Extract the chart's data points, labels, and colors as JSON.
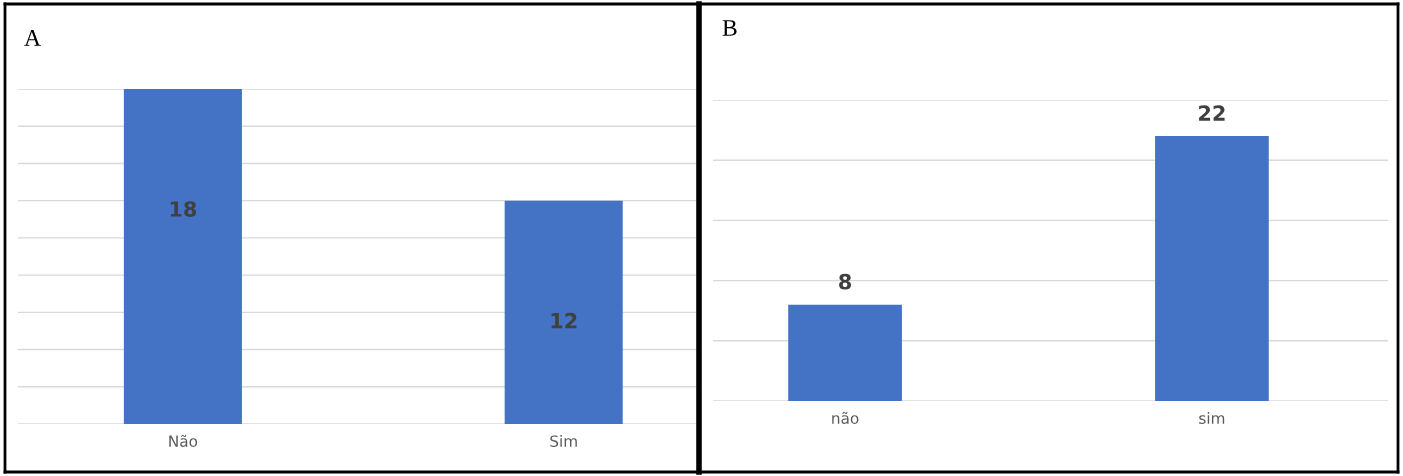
{
  "chart_data": [
    {
      "type": "bar",
      "title": "A",
      "categories": [
        "Não",
        "Sim"
      ],
      "values": [
        18,
        12
      ],
      "color": "#4472c4",
      "ylim": [
        0,
        18
      ],
      "yticks": [
        {
          "value": 0,
          "label": null
        },
        {
          "value": 2,
          "label": null
        },
        {
          "value": 4,
          "label": null
        },
        {
          "value": 6,
          "label": null
        },
        {
          "value": 8,
          "label": null
        },
        {
          "value": 10,
          "label": null
        },
        {
          "value": 12,
          "label": null
        },
        {
          "value": 14,
          "label": null
        },
        {
          "value": 16,
          "label": null
        },
        {
          "value": 18,
          "label": null
        }
      ],
      "grid": "y",
      "tick_labels": "x",
      "data_labels": true
    },
    {
      "type": "bar",
      "title": "B",
      "categories": [
        "não",
        "sim"
      ],
      "values": [
        8,
        22
      ],
      "color": "#4472c4",
      "ylim": [
        0,
        25
      ],
      "yticks": [
        {
          "value": 0,
          "label": null
        },
        {
          "value": 5,
          "label": null
        },
        {
          "value": 10,
          "label": null
        },
        {
          "value": 15,
          "label": null
        },
        {
          "value": 20,
          "label": null
        },
        {
          "value": 25,
          "label": null
        }
      ],
      "grid": "y",
      "tick_labels": "x",
      "data_labels": true
    }
  ]
}
